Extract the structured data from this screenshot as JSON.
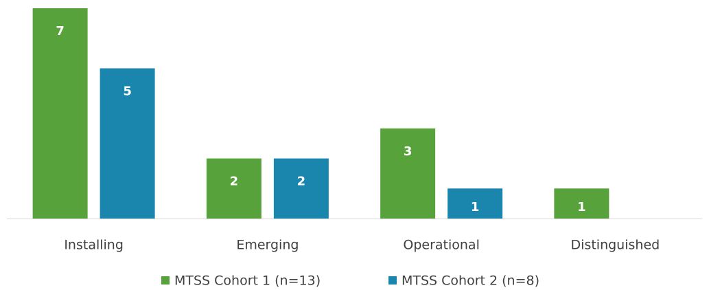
{
  "chart_data": {
    "type": "bar",
    "categories": [
      "Installing",
      "Emerging",
      "Operational",
      "Distinguished"
    ],
    "series": [
      {
        "name": "MTSS Cohort 1 (n=13)",
        "color": "#57a23a",
        "values": [
          7,
          2,
          3,
          1
        ]
      },
      {
        "name": "MTSS Cohort 2 (n=8)",
        "color": "#1a85ad",
        "values": [
          5,
          2,
          1,
          null
        ]
      }
    ]
  }
}
